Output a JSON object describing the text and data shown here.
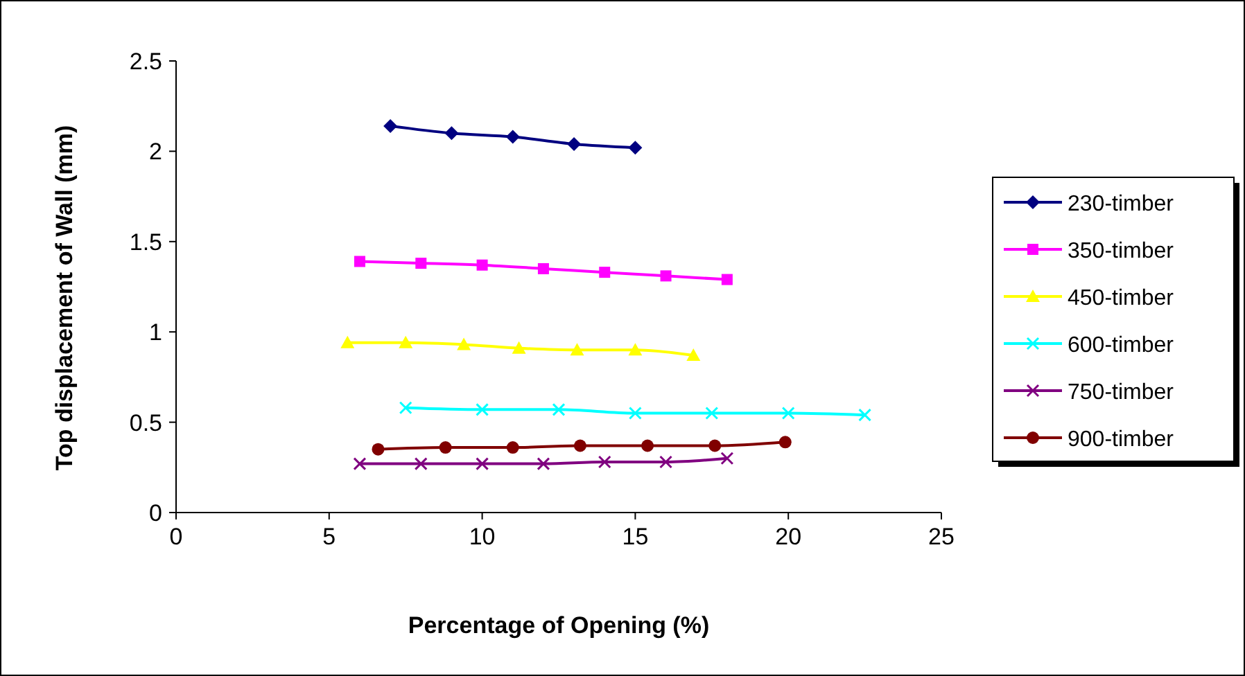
{
  "chart_data": {
    "type": "line",
    "xlabel": "Percentage of Opening (%)",
    "ylabel": "Top displacement of Wall (mm)",
    "xlim": [
      0,
      25
    ],
    "xticks": [
      0,
      5,
      10,
      15,
      20,
      25
    ],
    "ylim": [
      0,
      2.5
    ],
    "yticks": [
      0,
      0.5,
      1,
      1.5,
      2,
      2.5
    ],
    "grid": false,
    "legend": "right",
    "line_style": "solid",
    "series": [
      {
        "name": "230-timber",
        "color": "#000080",
        "marker": "diamond",
        "x": [
          7,
          9,
          11,
          13,
          15
        ],
        "values": [
          2.14,
          2.1,
          2.08,
          2.04,
          2.02
        ]
      },
      {
        "name": "350-timber",
        "color": "#ff00ff",
        "marker": "square",
        "x": [
          6,
          8,
          10,
          12,
          14,
          16,
          18
        ],
        "values": [
          1.39,
          1.38,
          1.37,
          1.35,
          1.33,
          1.31,
          1.29
        ]
      },
      {
        "name": "450-timber",
        "color": "#ffff00",
        "marker": "triangle",
        "x": [
          5.6,
          7.5,
          9.4,
          11.2,
          13.1,
          15,
          16.9
        ],
        "values": [
          0.94,
          0.94,
          0.93,
          0.91,
          0.9,
          0.9,
          0.87
        ]
      },
      {
        "name": "600-timber",
        "color": "#00ffff",
        "marker": "cross",
        "x": [
          7.5,
          10,
          12.5,
          15,
          17.5,
          20,
          22.5
        ],
        "values": [
          0.58,
          0.57,
          0.57,
          0.55,
          0.55,
          0.55,
          0.54
        ]
      },
      {
        "name": "750-timber",
        "color": "#800080",
        "marker": "cross",
        "x": [
          6,
          8,
          10,
          12,
          14,
          16,
          18
        ],
        "values": [
          0.27,
          0.27,
          0.27,
          0.27,
          0.28,
          0.28,
          0.3
        ]
      },
      {
        "name": "900-timber",
        "color": "#800000",
        "marker": "circle",
        "x": [
          6.6,
          8.8,
          11,
          13.2,
          15.4,
          17.6,
          19.9
        ],
        "values": [
          0.35,
          0.36,
          0.36,
          0.37,
          0.37,
          0.37,
          0.39
        ]
      }
    ]
  }
}
